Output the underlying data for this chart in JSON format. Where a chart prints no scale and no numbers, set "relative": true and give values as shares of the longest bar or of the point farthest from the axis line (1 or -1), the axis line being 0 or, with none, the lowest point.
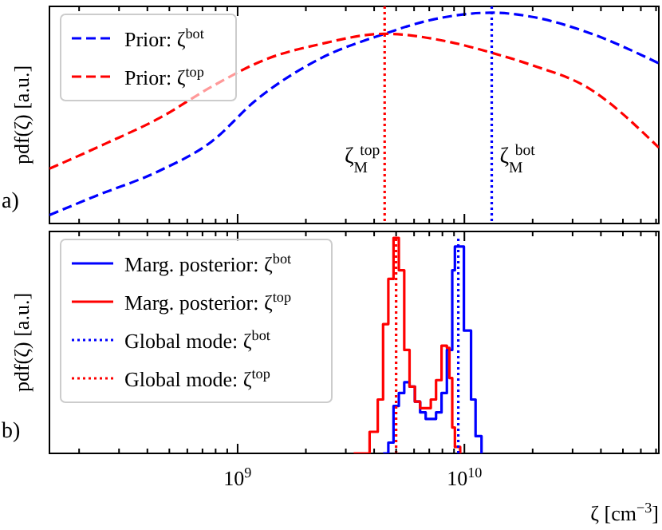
{
  "chart_data": [
    {
      "type": "line",
      "relative": true,
      "ylabel": "pdf(ζ) [a.u.]",
      "xlim": [
        148000000.0,
        72000000000.0
      ],
      "log": "x",
      "grid": false,
      "legend": "top left",
      "tick_labels": false,
      "xticks": [
        {
          "value": 200000000.0,
          "label": null
        },
        {
          "value": 300000000.0,
          "label": null
        },
        {
          "value": 400000000.0,
          "label": null
        },
        {
          "value": 500000000.0,
          "label": null
        },
        {
          "value": 600000000.0,
          "label": null
        },
        {
          "value": 700000000.0,
          "label": null
        },
        {
          "value": 800000000.0,
          "label": null
        },
        {
          "value": 900000000.0,
          "label": null
        },
        {
          "value": 1000000000.0,
          "label": null
        },
        {
          "value": 2000000000.0,
          "label": null
        },
        {
          "value": 3000000000.0,
          "label": null
        },
        {
          "value": 4000000000.0,
          "label": null
        },
        {
          "value": 5000000000.0,
          "label": null
        },
        {
          "value": 6000000000.0,
          "label": null
        },
        {
          "value": 7000000000.0,
          "label": null
        },
        {
          "value": 8000000000.0,
          "label": null
        },
        {
          "value": 9000000000.0,
          "label": null
        },
        {
          "value": 10000000000.0,
          "label": null
        },
        {
          "value": 20000000000.0,
          "label": null
        },
        {
          "value": 30000000000.0,
          "label": null
        },
        {
          "value": 40000000000.0,
          "label": null
        },
        {
          "value": 50000000000.0,
          "label": null
        },
        {
          "value": 60000000000.0,
          "label": null
        },
        {
          "value": 70000000000.0,
          "label": null
        }
      ],
      "series": [
        {
          "name": "Prior: ζ$^{bot}$",
          "color": "#0000ff",
          "line_style": "dashed",
          "x": [
            148000000.0,
            236000000.0,
            452000000.0,
            771000000.0,
            1190000000.0,
            2290000000.0,
            4450000000.0,
            6760000000.0,
            13200000000.0,
            20000000000.0,
            34300000000.0,
            72000000000.0
          ],
          "values": [
            0.04,
            0.13,
            0.25,
            0.39,
            0.58,
            0.78,
            0.9,
            0.96,
            1,
            0.98,
            0.91,
            0.76
          ]
        },
        {
          "name": "Prior: ζ$^{top}$",
          "color": "#ff0000",
          "line_style": "dashed",
          "x": [
            148000000.0,
            263000000.0,
            452000000.0,
            771000000.0,
            1340000000.0,
            2290000000.0,
            4450000000.0,
            8710000000.0,
            13200000000.0,
            20000000000.0,
            34300000000.0,
            72000000000.0
          ],
          "values": [
            0.26,
            0.38,
            0.5,
            0.65,
            0.78,
            0.85,
            0.9,
            0.86,
            0.81,
            0.75,
            0.65,
            0.36
          ]
        }
      ],
      "ref_lines": [
        {
          "axis": "x",
          "value": 4450000000.0,
          "label": "ζ$_{M}$$^{top}$",
          "color": "#ff0000",
          "line_style": "dotted"
        },
        {
          "axis": "x",
          "value": 13200000000.0,
          "label": "ζ$_{M}$$^{bot}$",
          "color": "#0000ff",
          "line_style": "dotted"
        }
      ],
      "annotations": [
        "a)"
      ]
    },
    {
      "type": "step",
      "relative": true,
      "ylabel": "pdf(ζ) [a.u.]",
      "xlabel": "ζ [cm$^{−3}$]",
      "xlim": [
        148000000.0,
        72000000000.0
      ],
      "log": "x",
      "grid": false,
      "legend": "top left",
      "tick_labels": "x",
      "xticks": [
        {
          "value": 200000000.0,
          "label": null
        },
        {
          "value": 300000000.0,
          "label": null
        },
        {
          "value": 400000000.0,
          "label": null
        },
        {
          "value": 500000000.0,
          "label": null
        },
        {
          "value": 600000000.0,
          "label": null
        },
        {
          "value": 700000000.0,
          "label": null
        },
        {
          "value": 800000000.0,
          "label": null
        },
        {
          "value": 900000000.0,
          "label": null
        },
        {
          "value": 1000000000.0,
          "label": "10$^{9}$"
        },
        {
          "value": 2000000000.0,
          "label": null
        },
        {
          "value": 3000000000.0,
          "label": null
        },
        {
          "value": 4000000000.0,
          "label": null
        },
        {
          "value": 5000000000.0,
          "label": null
        },
        {
          "value": 6000000000.0,
          "label": null
        },
        {
          "value": 7000000000.0,
          "label": null
        },
        {
          "value": 8000000000.0,
          "label": null
        },
        {
          "value": 9000000000.0,
          "label": null
        },
        {
          "value": 10000000000.0,
          "label": "10$^{10}$"
        },
        {
          "value": 20000000000.0,
          "label": null
        },
        {
          "value": 30000000000.0,
          "label": null
        },
        {
          "value": 40000000000.0,
          "label": null
        },
        {
          "value": 50000000000.0,
          "label": null
        },
        {
          "value": 60000000000.0,
          "label": null
        },
        {
          "value": 70000000000.0,
          "label": null
        }
      ],
      "series": [
        {
          "name": "Marg. posterior: ζ$^{bot}$",
          "color": "#0000ff",
          "line_style": "solid",
          "x": [
            4380000000.0,
            4620000000.0,
            4870000000.0,
            5140000000.0,
            5430000000.0,
            5730000000.0,
            6050000000.0,
            6380000000.0,
            6750000000.0,
            7500000000.0,
            7930000000.0,
            8370000000.0,
            8840000000.0,
            9080000000.0,
            9950000000.0,
            10700000000.0,
            11200000000.0,
            11900000000.0
          ],
          "values": [
            0,
            0.05,
            0.22,
            0.28,
            0.33,
            0.31,
            0.24,
            0.19,
            0.16,
            0.19,
            0.28,
            0.48,
            0.85,
            0.96,
            0.57,
            0.25,
            0.08,
            0
          ]
        },
        {
          "name": "Marg. posterior: ζ$^{top}$",
          "color": "#ff0000",
          "line_style": "solid",
          "x": [
            3250000000.0,
            3820000000.0,
            4150000000.0,
            4380000000.0,
            4620000000.0,
            4870000000.0,
            5140000000.0,
            5430000000.0,
            5730000000.0,
            6050000000.0,
            6380000000.0,
            7110000000.0,
            7500000000.0,
            7930000000.0,
            8370000000.0,
            8590000000.0,
            8840000000.0,
            9080000000.0,
            9580000000.0
          ],
          "values": [
            0,
            0.1,
            0.25,
            0.6,
            0.81,
            1,
            0.85,
            0.48,
            0.31,
            0.24,
            0.21,
            0.25,
            0.34,
            0.5,
            0.49,
            0.35,
            0.12,
            0.03,
            0
          ]
        },
        {
          "name": "Global mode: ζ$^{bot}$",
          "type": "line",
          "color": "#0000ff",
          "line_style": "dotted",
          "x": [
            9400000000.0,
            9400000000.0
          ],
          "values": [
            0,
            1
          ]
        },
        {
          "name": "Global mode: ζ$^{top}$",
          "type": "line",
          "color": "#ff0000",
          "line_style": "dotted",
          "x": [
            5000000000.0,
            5000000000.0
          ],
          "values": [
            0,
            1
          ]
        }
      ],
      "annotations": [
        "b)"
      ]
    }
  ]
}
